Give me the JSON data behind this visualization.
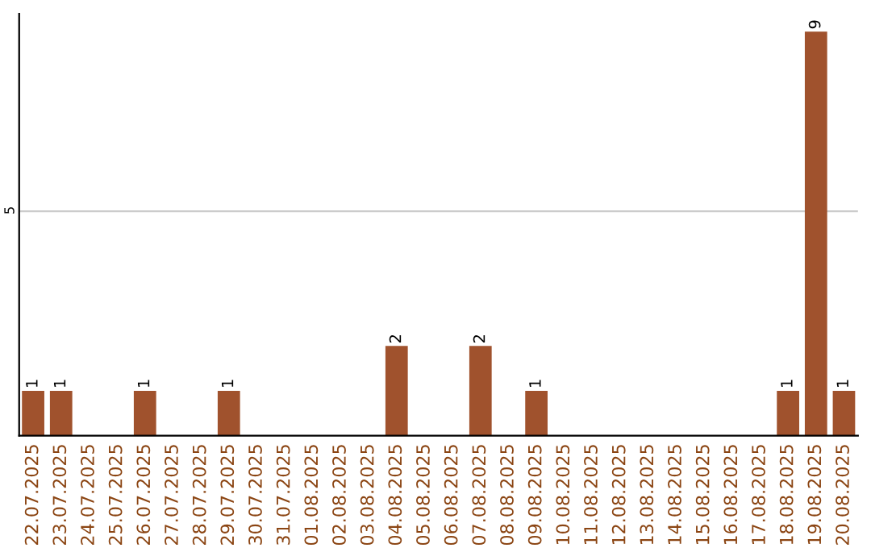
{
  "chart_data": {
    "type": "bar",
    "categories": [
      "22.07.2025",
      "23.07.2025",
      "24.07.2025",
      "25.07.2025",
      "26.07.2025",
      "27.07.2025",
      "28.07.2025",
      "29.07.2025",
      "30.07.2025",
      "31.07.2025",
      "01.08.2025",
      "02.08.2025",
      "03.08.2025",
      "04.08.2025",
      "05.08.2025",
      "06.08.2025",
      "07.08.2025",
      "08.08.2025",
      "09.08.2025",
      "10.08.2025",
      "11.08.2025",
      "12.08.2025",
      "13.08.2025",
      "14.08.2025",
      "15.08.2025",
      "16.08.2025",
      "17.08.2025",
      "18.08.2025",
      "19.08.2025",
      "20.08.2025"
    ],
    "values": [
      1,
      1,
      0,
      0,
      1,
      0,
      0,
      1,
      0,
      0,
      0,
      0,
      0,
      2,
      0,
      0,
      2,
      0,
      1,
      0,
      0,
      0,
      0,
      0,
      0,
      0,
      0,
      1,
      9,
      1
    ],
    "value_labels": [
      "1",
      "1",
      null,
      null,
      "1",
      null,
      null,
      "1",
      null,
      null,
      null,
      null,
      null,
      "2",
      null,
      null,
      "2",
      null,
      "1",
      null,
      null,
      null,
      null,
      null,
      null,
      null,
      null,
      "1",
      "9",
      "1"
    ],
    "color": "#a0522d",
    "ylim": [
      0,
      9.4
    ],
    "yticks": [
      5
    ],
    "grid": "y"
  }
}
